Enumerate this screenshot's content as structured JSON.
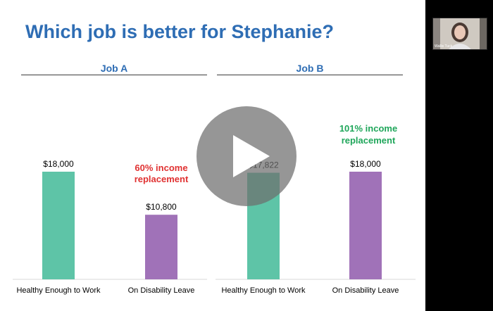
{
  "slide": {
    "title": "Which job is better for Stephanie?",
    "job_a_label": "Job A",
    "job_b_label": "Job B",
    "annotation_a": [
      "60% income",
      "replacement"
    ],
    "annotation_b": [
      "101% income",
      "replacement"
    ],
    "annotation_a_color": "#e03131",
    "annotation_b_color": "#1fa65a"
  },
  "chart_data": {
    "type": "bar",
    "ylim": [
      0,
      18000
    ],
    "groups": [
      {
        "name": "Job A",
        "bars": [
          {
            "category": "Healthy Enough to Work",
            "value": 18000,
            "label": "$18,000",
            "color": "#5ec4a7"
          },
          {
            "category": "On Disability Leave",
            "value": 10800,
            "label": "$10,800",
            "color": "#a072b8"
          }
        ]
      },
      {
        "name": "Job B",
        "bars": [
          {
            "category": "Healthy Enough to Work",
            "value": 17822,
            "label": "$17,822",
            "color": "#5ec4a7"
          },
          {
            "category": "On Disability Leave",
            "value": 18000,
            "label": "$18,000",
            "color": "#a072b8"
          }
        ]
      }
    ]
  },
  "video": {
    "play_icon": "play-icon",
    "presenter_name": "Wallis Tuck"
  }
}
